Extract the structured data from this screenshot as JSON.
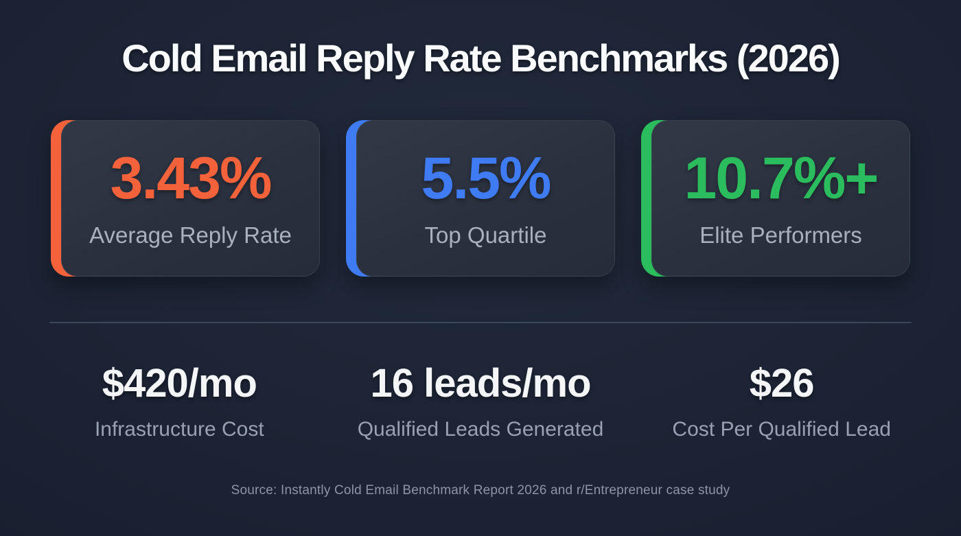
{
  "title": "Cold Email Reply Rate Benchmarks (2026)",
  "benchmark_cards": [
    {
      "value": "3.43%",
      "label": "Average Reply Rate",
      "accent_color": "#f4623c"
    },
    {
      "value": "5.5%",
      "label": "Top Quartile",
      "accent_color": "#3f7bf2"
    },
    {
      "value": "10.7%+",
      "label": "Elite Performers",
      "accent_color": "#2bbc5e"
    }
  ],
  "economics_stats": [
    {
      "value": "$420/mo",
      "label": "Infrastructure Cost"
    },
    {
      "value": "16 leads/mo",
      "label": "Qualified Leads Generated"
    },
    {
      "value": "$26",
      "label": "Cost Per Qualified Lead"
    }
  ],
  "source": "Source: Instantly Cold Email Benchmark Report 2026 and r/Entrepreneur case study",
  "colors": {
    "background": "#1a2132",
    "card_background": "#2c3341",
    "divider": "#3b475c",
    "primary_text": "#fafbfc",
    "secondary_text": "#a9b1bf",
    "tertiary_text": "#8d95a7"
  },
  "chart_data": [
    {
      "type": "table",
      "title": "Cold Email Reply Rate Benchmarks (2026)",
      "categories": [
        "Average Reply Rate",
        "Top Quartile",
        "Elite Performers"
      ],
      "values": [
        3.43,
        5.5,
        10.7
      ],
      "unit": "%",
      "annotations": "Elite Performers displayed as 10.7%+"
    },
    {
      "type": "table",
      "title": "Campaign economics",
      "categories": [
        "Infrastructure Cost",
        "Qualified Leads Generated",
        "Cost Per Qualified Lead"
      ],
      "values": [
        "$420/mo",
        "16 leads/mo",
        "$26"
      ]
    }
  ]
}
